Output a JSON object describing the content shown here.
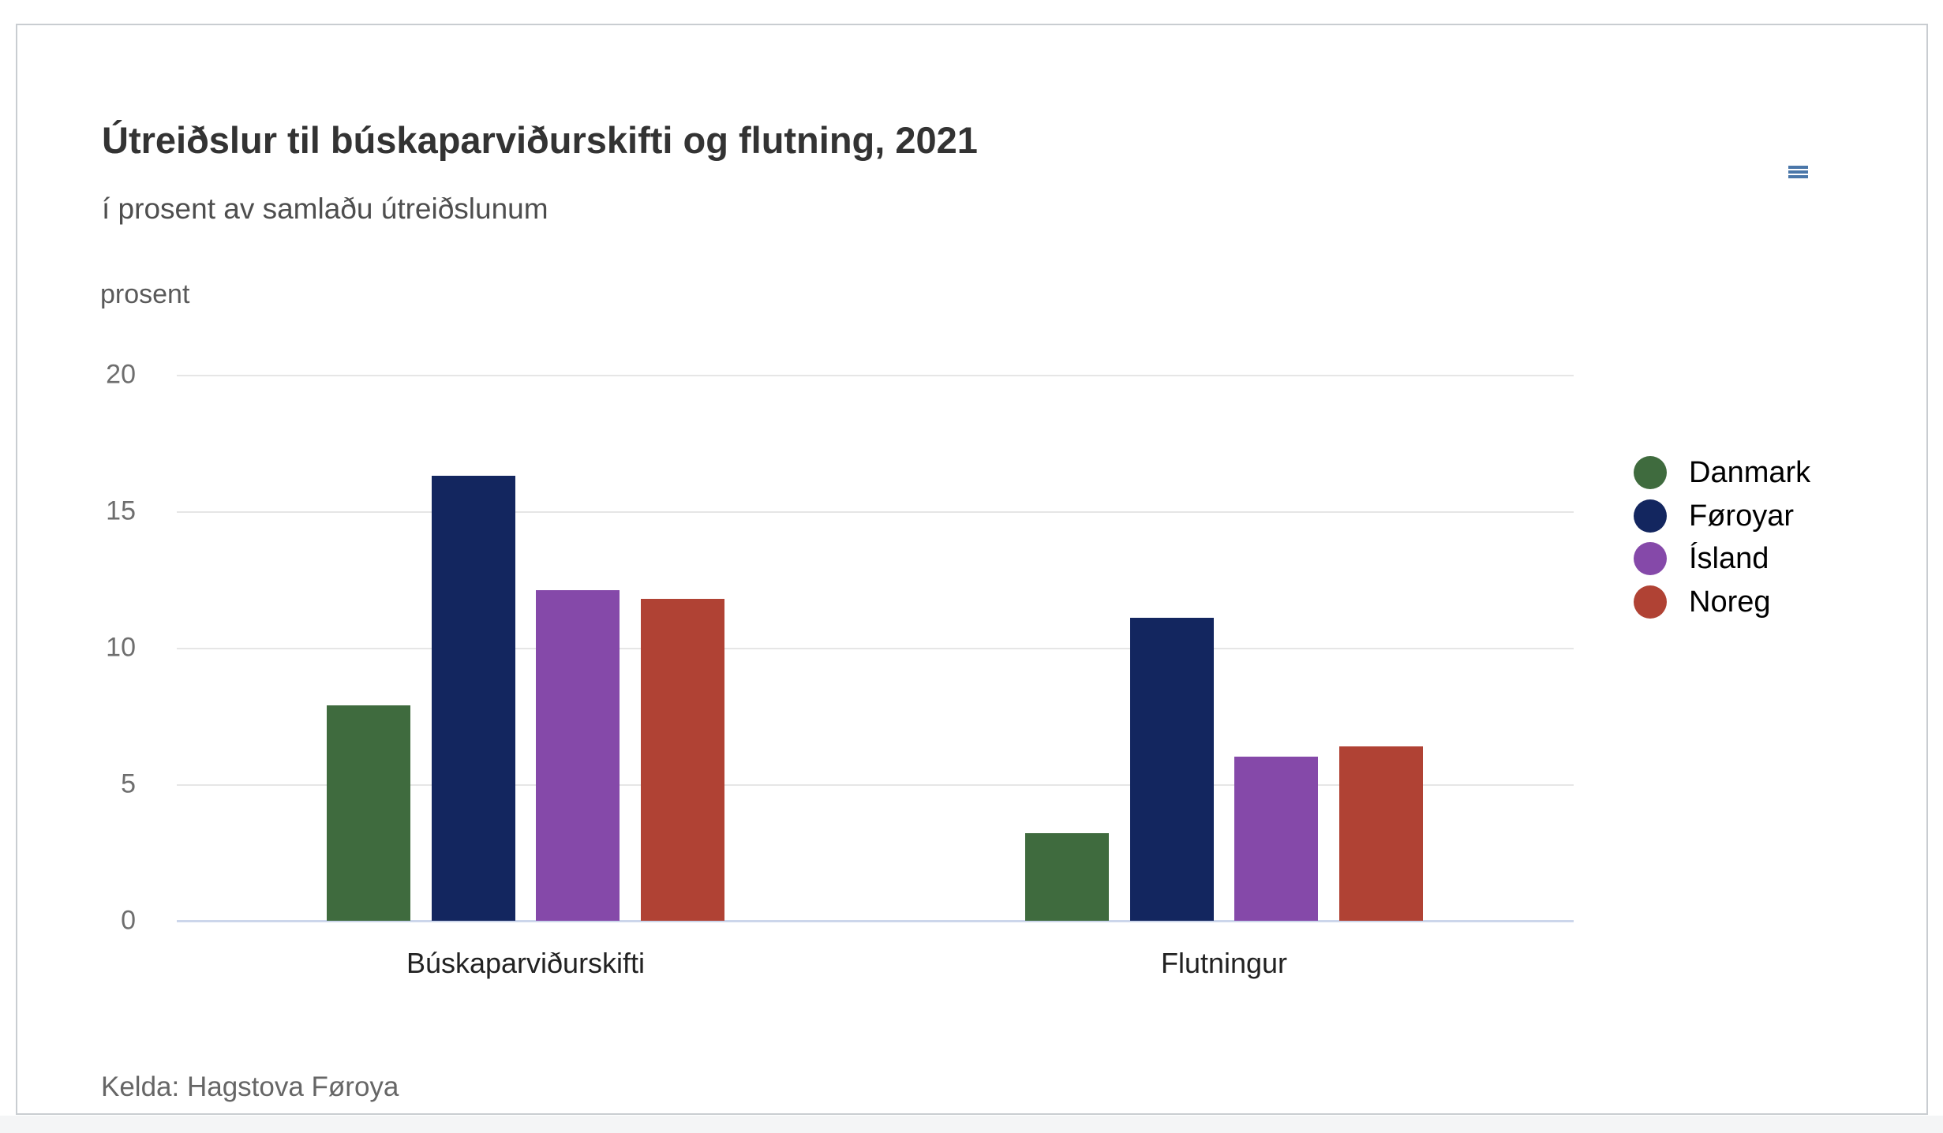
{
  "page": {
    "menu_icon": "hamburger-icon"
  },
  "chart_data": {
    "type": "bar",
    "title": "Útreiðslur til búskaparviðurskifti og flutning, 2021",
    "subtitle": "í prosent av samlaðu útreiðslunum",
    "ylabel": "prosent",
    "xlabel": "",
    "categories": [
      "Búskaparviðurskifti",
      "Flutningur"
    ],
    "series": [
      {
        "name": "Danmark",
        "color": "#3f6b3e",
        "values": [
          7.9,
          3.2
        ]
      },
      {
        "name": "Føroyar",
        "color": "#13265f",
        "values": [
          16.3,
          11.1
        ]
      },
      {
        "name": "Ísland",
        "color": "#8549a9",
        "values": [
          12.1,
          6.0
        ]
      },
      {
        "name": "Noreg",
        "color": "#b04234",
        "values": [
          11.8,
          6.4
        ]
      }
    ],
    "ylim": [
      0,
      20
    ],
    "yticks": [
      0,
      5,
      10,
      15,
      20
    ],
    "grid": true,
    "legend_position": "right",
    "source": "Kelda: Hagstova Føroya"
  },
  "colors": {
    "grid": "#e6e6e6",
    "axis_line": "#ccd6eb",
    "card_border": "#c9cdd1",
    "menu_icon": "#4b77a9",
    "title": "#333333",
    "subtitle": "#4e4e4e",
    "tick_label": "#6e6e6e",
    "source_text": "#666666"
  }
}
